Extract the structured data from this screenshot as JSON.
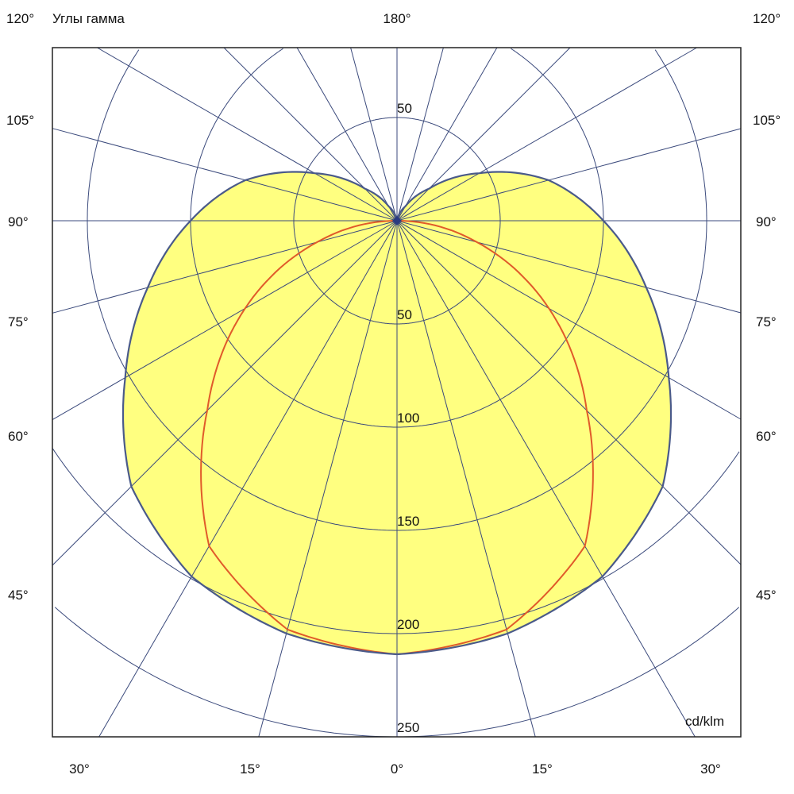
{
  "chart_data": {
    "type": "polar",
    "title": "Углы гамма",
    "unit_label": "cd/klm",
    "top_angle_label": "180°",
    "side_angle_labels": [
      "120°",
      "105°",
      "90°",
      "75°",
      "60°",
      "45°"
    ],
    "bottom_angle_labels": [
      "30°",
      "15°",
      "0°",
      "15°",
      "30°"
    ],
    "radial_tick_labels": [
      "50",
      "50",
      "100",
      "150",
      "200",
      "250"
    ],
    "radial_step": 50,
    "angle_step_deg": 15,
    "grid": true,
    "symmetric": true,
    "series": [
      {
        "color": "#e05a2a",
        "fill": "none",
        "angles_deg": [
          0,
          15,
          30,
          45,
          60,
          75,
          90
        ],
        "values": [
          210,
          205,
          182,
          130,
          85,
          40,
          0
        ]
      },
      {
        "color": "#4a5a8a",
        "fill": "#ffff80",
        "angles_deg": [
          0,
          15,
          30,
          45,
          60,
          75,
          90,
          105,
          120,
          135,
          150,
          165,
          180
        ],
        "values": [
          210,
          207,
          199,
          182,
          152,
          125,
          100,
          76,
          46,
          22,
          8,
          2,
          0
        ]
      }
    ]
  },
  "colors": {
    "grid": "#3b4a7c",
    "frame": "#222222"
  }
}
